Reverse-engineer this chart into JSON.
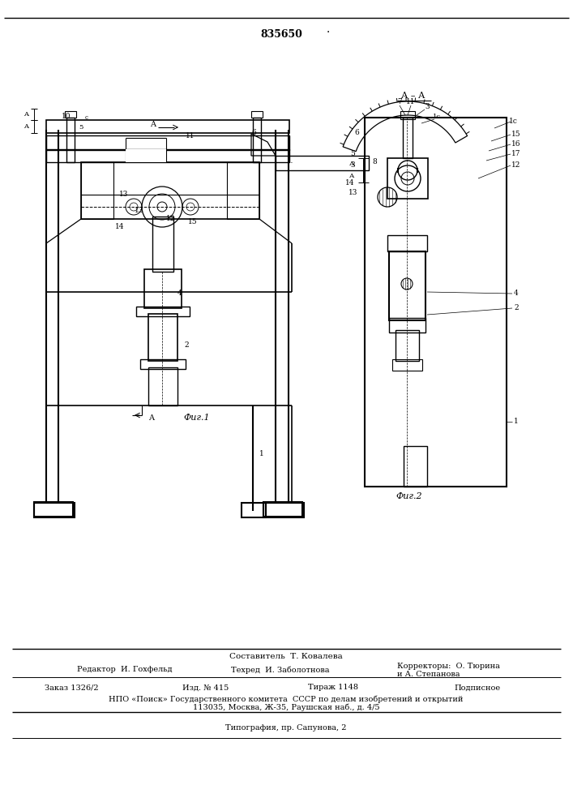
{
  "patent_number": "835650",
  "background_color": "#ffffff",
  "line_color": "#000000",
  "fig_width": 7.07,
  "fig_height": 10.0,
  "footer": {
    "compiler": "Составитель  Т. Ковалева",
    "editor": "Редактор  И. Гохфельд",
    "techred": "Техред  И. Заболотнова",
    "correctors_line1": "Корректоры:  О. Тюрина",
    "correctors_line2": "и А. Степанова",
    "order": "Заказ 1326/2",
    "izd": "Изд. № 415",
    "tirazh": "Тираж 1148",
    "podpisnoe": "Подписное",
    "npo": "НПО «Поиск» Государственного комитета  СССР по делам изобретений и открытий",
    "address": "113035, Москва, Ж-35, Раушская наб., д. 4/5",
    "tipografia": "Типография, пр. Сапунова, 2"
  }
}
